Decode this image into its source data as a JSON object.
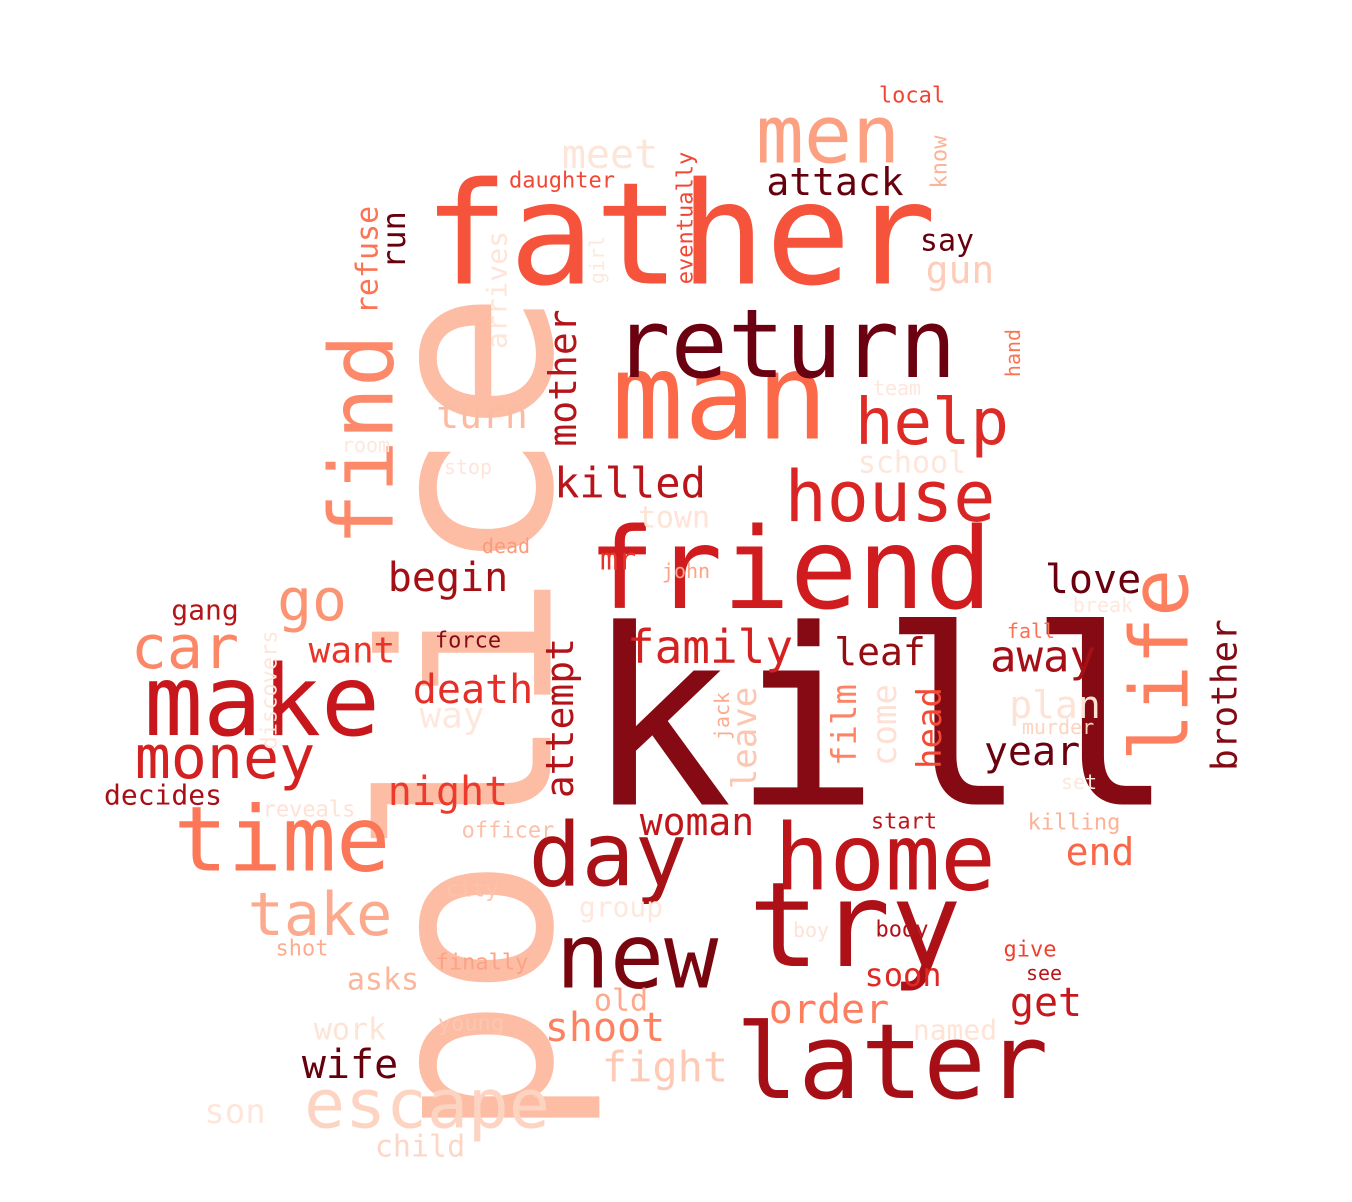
{
  "word_cloud": {
    "words": [
      {
        "text": "kill",
        "color": "#850a14"
      },
      {
        "text": "police",
        "color": "#fcbda4"
      },
      {
        "text": "father",
        "color": "#f5533b"
      },
      {
        "text": "man",
        "color": "#fb6949"
      },
      {
        "text": "friend",
        "color": "#d01c1f"
      },
      {
        "text": "return",
        "color": "#6b0010"
      },
      {
        "text": "make",
        "color": "#c7171c"
      },
      {
        "text": "try",
        "color": "#ad1117"
      },
      {
        "text": "new",
        "color": "#79060f"
      },
      {
        "text": "later",
        "color": "#a50f15"
      },
      {
        "text": "home",
        "color": "#bd151a"
      },
      {
        "text": "day",
        "color": "#a81115"
      },
      {
        "text": "time",
        "color": "#fb7757"
      },
      {
        "text": "house",
        "color": "#d92523"
      },
      {
        "text": "men",
        "color": "#fca082"
      },
      {
        "text": "find",
        "color": "#fc8a6a"
      },
      {
        "text": "escape",
        "color": "#fdd4c2"
      },
      {
        "text": "life",
        "color": "#fc8060"
      },
      {
        "text": "help",
        "color": "#de2b25"
      },
      {
        "text": "money",
        "color": "#d32020"
      },
      {
        "text": "car",
        "color": "#fc8767"
      },
      {
        "text": "take",
        "color": "#fcaa8d"
      },
      {
        "text": "go",
        "color": "#fc9373"
      },
      {
        "text": "family",
        "color": "#d52221"
      },
      {
        "text": "attack",
        "color": "#67000d"
      },
      {
        "text": "killed",
        "color": "#b91419"
      },
      {
        "text": "attempt",
        "color": "#b21218"
      },
      {
        "text": "death",
        "color": "#e32f27"
      },
      {
        "text": "begin",
        "color": "#a30f15"
      },
      {
        "text": "mother",
        "color": "#b51419"
      },
      {
        "text": "night",
        "color": "#ee3a2c"
      },
      {
        "text": "love",
        "color": "#6a000d"
      },
      {
        "text": "away",
        "color": "#a50f15"
      },
      {
        "text": "year",
        "color": "#6b010e"
      },
      {
        "text": "brother",
        "color": "#830a14"
      },
      {
        "text": "leaf",
        "color": "#930d13"
      },
      {
        "text": "woman",
        "color": "#bf151b"
      },
      {
        "text": "order",
        "color": "#fc7e5e"
      },
      {
        "text": "shoot",
        "color": "#fc8161"
      },
      {
        "text": "fight",
        "color": "#fdcab5"
      },
      {
        "text": "wife",
        "color": "#67000d"
      },
      {
        "text": "get",
        "color": "#c8171c"
      },
      {
        "text": "end",
        "color": "#fa6648"
      },
      {
        "text": "soon",
        "color": "#de2a25"
      },
      {
        "text": "turn",
        "color": "#fcbba1"
      },
      {
        "text": "meet",
        "color": "#fee5d9"
      },
      {
        "text": "gun",
        "color": "#fdcdb9"
      },
      {
        "text": "run",
        "color": "#67000d"
      },
      {
        "text": "refuse",
        "color": "#fb7555"
      },
      {
        "text": "say",
        "color": "#67000d"
      },
      {
        "text": "want",
        "color": "#e83429"
      },
      {
        "text": "film",
        "color": "#fc8464"
      },
      {
        "text": "come",
        "color": "#fee1d4"
      },
      {
        "text": "head",
        "color": "#f34a36"
      },
      {
        "text": "leave",
        "color": "#fdc6b0"
      },
      {
        "text": "plan",
        "color": "#fee2d5"
      },
      {
        "text": "way",
        "color": "#fee8dd"
      },
      {
        "text": "gang",
        "color": "#b51419"
      },
      {
        "text": "decides",
        "color": "#a50f15"
      },
      {
        "text": "school",
        "color": "#fee6da"
      },
      {
        "text": "town",
        "color": "#fee3d6"
      },
      {
        "text": "arrives",
        "color": "#fee5d9"
      },
      {
        "text": "mr",
        "color": "#e73328"
      },
      {
        "text": "asks",
        "color": "#fcb69b"
      },
      {
        "text": "child",
        "color": "#fdd7c6"
      },
      {
        "text": "son",
        "color": "#fee6da"
      },
      {
        "text": "work",
        "color": "#fee3d7"
      },
      {
        "text": "old",
        "color": "#fca98c"
      },
      {
        "text": "group",
        "color": "#fee8de"
      },
      {
        "text": "named",
        "color": "#fee3d6"
      },
      {
        "text": "daughter",
        "color": "#f24734"
      },
      {
        "text": "local",
        "color": "#f14432"
      },
      {
        "text": "eventually",
        "color": "#f24633"
      },
      {
        "text": "know",
        "color": "#fcb499"
      },
      {
        "text": "hand",
        "color": "#fb7353"
      },
      {
        "text": "team",
        "color": "#fee7dc"
      },
      {
        "text": "room",
        "color": "#fee8de"
      },
      {
        "text": "stop",
        "color": "#fee5d9"
      },
      {
        "text": "dead",
        "color": "#fc9b7c"
      },
      {
        "text": "john",
        "color": "#fca285"
      },
      {
        "text": "break",
        "color": "#fee8de"
      },
      {
        "text": "fall",
        "color": "#fb7252"
      },
      {
        "text": "force",
        "color": "#870a14"
      },
      {
        "text": "discovers",
        "color": "#fee6da"
      },
      {
        "text": "girl",
        "color": "#fee8dd"
      },
      {
        "text": "jack",
        "color": "#fcab8f"
      },
      {
        "text": "murder",
        "color": "#fdd3c1"
      },
      {
        "text": "set",
        "color": "#fee7db"
      },
      {
        "text": "reveals",
        "color": "#fee2d5"
      },
      {
        "text": "officer",
        "color": "#fcbfa7"
      },
      {
        "text": "start",
        "color": "#c0151b"
      },
      {
        "text": "killing",
        "color": "#fcb296"
      },
      {
        "text": "city",
        "color": "#fcc3ab"
      },
      {
        "text": "boy",
        "color": "#fee2d5"
      },
      {
        "text": "body",
        "color": "#b11218"
      },
      {
        "text": "give",
        "color": "#f0402f"
      },
      {
        "text": "see",
        "color": "#b91419"
      },
      {
        "text": "shot",
        "color": "#fcad90"
      },
      {
        "text": "finally",
        "color": "#fca285"
      },
      {
        "text": "young",
        "color": "#fdc6b0"
      }
    ]
  }
}
